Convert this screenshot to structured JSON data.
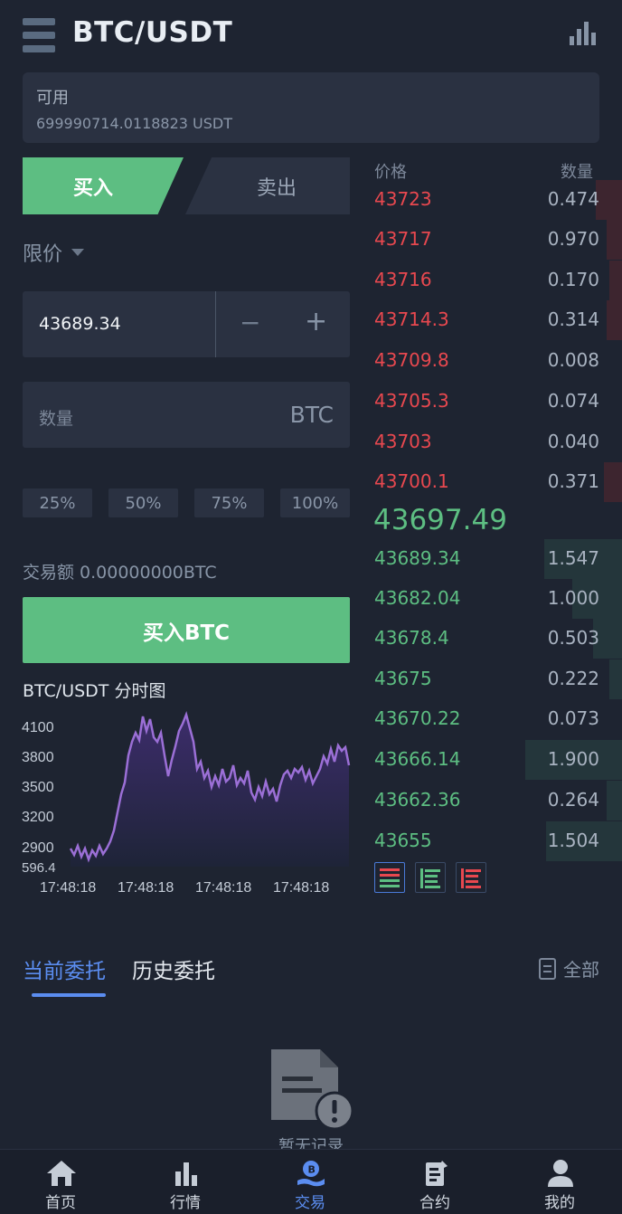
{
  "header": {
    "title": "BTC/USDT",
    "menu_icon": "hamburger-menu-icon",
    "chart_icon": "bar-chart-icon"
  },
  "balance": {
    "label": "可用",
    "value": "699990714.0118823 USDT"
  },
  "trade_tabs": {
    "buy": "买入",
    "sell": "卖出",
    "active": "buy"
  },
  "order_type": {
    "label": "限价",
    "icon": "chevron-down-icon"
  },
  "price_input": {
    "value": "43689.34",
    "minus": "−",
    "plus": "+"
  },
  "quantity_input": {
    "placeholder": "数量",
    "unit": "BTC"
  },
  "percent_buttons": [
    "25%",
    "50%",
    "75%",
    "100%"
  ],
  "trade_amount": "交易额 0.00000000BTC",
  "buy_button": "买入BTC",
  "mini_chart": {
    "title": "BTC/USDT 分时图",
    "y_ticks": [
      "4100",
      "3800",
      "3500",
      "3200",
      "2900",
      "596.4"
    ],
    "x_ticks": [
      "17:48:18",
      "17:48:18",
      "17:48:18",
      "17:48:18"
    ],
    "line_color": "#9b6fd6"
  },
  "orderbook": {
    "header": {
      "price": "价格",
      "quantity": "数量"
    },
    "asks": [
      {
        "price": "43723",
        "qty": "0.474",
        "depth": 0.1
      },
      {
        "price": "43717",
        "qty": "0.970",
        "depth": 0.06
      },
      {
        "price": "43716",
        "qty": "0.170",
        "depth": 0.05
      },
      {
        "price": "43714.3",
        "qty": "0.314",
        "depth": 0.06
      },
      {
        "price": "43709.8",
        "qty": "0.008",
        "depth": 0.0
      },
      {
        "price": "43705.3",
        "qty": "0.074",
        "depth": 0.0
      },
      {
        "price": "43703",
        "qty": "0.040",
        "depth": 0.0
      },
      {
        "price": "43700.1",
        "qty": "0.371",
        "depth": 0.07
      }
    ],
    "last_price": "43697.49",
    "bids": [
      {
        "price": "43689.34",
        "qty": "1.547",
        "depth": 0.3
      },
      {
        "price": "43682.04",
        "qty": "1.000",
        "depth": 0.19
      },
      {
        "price": "43678.4",
        "qty": "0.503",
        "depth": 0.11
      },
      {
        "price": "43675",
        "qty": "0.222",
        "depth": 0.05
      },
      {
        "price": "43670.22",
        "qty": "0.073",
        "depth": 0.0
      },
      {
        "price": "43666.14",
        "qty": "1.900",
        "depth": 0.37
      },
      {
        "price": "43662.36",
        "qty": "0.264",
        "depth": 0.06
      },
      {
        "price": "43655",
        "qty": "1.504",
        "depth": 0.29
      }
    ],
    "colors": {
      "ask": "#e8484f",
      "bid": "#5dbe82"
    }
  },
  "orders": {
    "current_tab": "当前委托",
    "history_tab": "历史委托",
    "all": "全部",
    "empty_text": "暂无记录"
  },
  "bottom_nav": [
    {
      "label": "首页",
      "icon": "home-icon"
    },
    {
      "label": "行情",
      "icon": "market-icon"
    },
    {
      "label": "交易",
      "icon": "trade-icon",
      "active": true
    },
    {
      "label": "合约",
      "icon": "contract-icon"
    },
    {
      "label": "我的",
      "icon": "user-icon"
    }
  ]
}
